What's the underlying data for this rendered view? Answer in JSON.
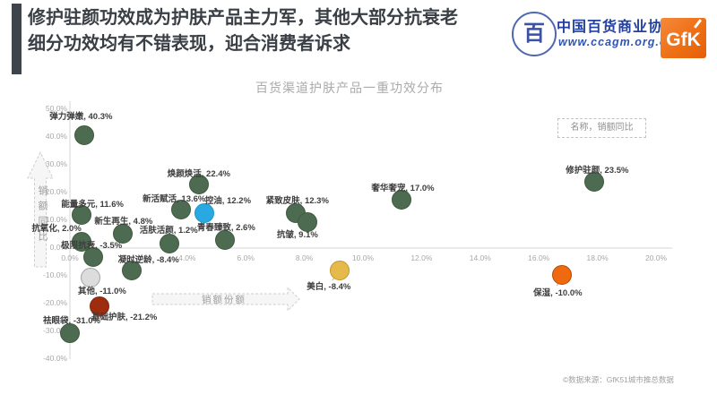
{
  "header": {
    "title_line1": "修护驻颜功效成为护肤产品主力军，其他大部分抗衰老",
    "title_line2": "细分功效均有不错表现，迎合消费者诉求",
    "org_name": "中国百货商业协会",
    "org_url": "www.ccagm.org.cn",
    "org_seal_glyph": "百",
    "gfk_logo_text": "GfK"
  },
  "chart_data": {
    "type": "scatter",
    "title": "百货渠道护肤产品一重功效分布",
    "xlabel": "销额份额",
    "ylabel": "销额同比",
    "legend": "名称，销额同比",
    "legend_position": "top-right",
    "grid": false,
    "xlim": [
      0,
      20
    ],
    "ylim": [
      -40,
      50
    ],
    "x_ticks": [
      {
        "v": 0,
        "label": "0.0%"
      },
      {
        "v": 4,
        "label": "4.0%"
      },
      {
        "v": 6,
        "label": "6.0%"
      },
      {
        "v": 8,
        "label": "8.0%"
      },
      {
        "v": 10,
        "label": "10.0%"
      },
      {
        "v": 12,
        "label": "12.0%"
      },
      {
        "v": 14,
        "label": "14.0%"
      },
      {
        "v": 16,
        "label": "16.0%"
      },
      {
        "v": 18,
        "label": "18.0%"
      },
      {
        "v": 20,
        "label": "20.0%"
      }
    ],
    "y_ticks": [
      {
        "v": 50,
        "label": "50.0%"
      },
      {
        "v": 40,
        "label": "40.0%"
      },
      {
        "v": 30,
        "label": "30.0%"
      },
      {
        "v": 20,
        "label": "20.0%"
      },
      {
        "v": 10,
        "label": "10.0%"
      },
      {
        "v": 0,
        "label": "0.0%"
      },
      {
        "v": -10,
        "label": "-10.0%"
      },
      {
        "v": -20,
        "label": "-20.0%"
      },
      {
        "v": -30,
        "label": "-30.0%"
      },
      {
        "v": -40,
        "label": "-40.0%"
      }
    ],
    "points": [
      {
        "name": "弹力弹嫩",
        "share_pct": 0.5,
        "growth_pct": 40.3,
        "growth_label": "40.3%",
        "color": "green"
      },
      {
        "name": "能量多元",
        "share_pct": 0.4,
        "growth_pct": 11.6,
        "growth_label": "11.6%",
        "color": "green"
      },
      {
        "name": "抗氧化",
        "share_pct": 0.4,
        "growth_pct": 2.0,
        "growth_label": "2.0%",
        "color": "green"
      },
      {
        "name": "极限抗衰",
        "share_pct": 0.8,
        "growth_pct": -3.5,
        "growth_label": "-3.5%",
        "color": "green"
      },
      {
        "name": "凝时逆龄",
        "share_pct": 2.1,
        "growth_pct": -8.4,
        "growth_label": "-8.4%",
        "color": "green"
      },
      {
        "name": "其他",
        "share_pct": 0.7,
        "growth_pct": -11.0,
        "growth_label": "-11.0%",
        "color": "gray"
      },
      {
        "name": "祛眼袋",
        "share_pct": 0.0,
        "growth_pct": -31.0,
        "growth_label": "-31.0%",
        "color": "green"
      },
      {
        "name": "基础护肤",
        "share_pct": 1.0,
        "growth_pct": -21.2,
        "growth_label": "-21.2%",
        "color": "darkred"
      },
      {
        "name": "新生再生",
        "share_pct": 1.8,
        "growth_pct": 4.8,
        "growth_label": "4.8%",
        "color": "green"
      },
      {
        "name": "活肤活颜",
        "share_pct": 3.4,
        "growth_pct": 1.2,
        "growth_label": "1.2%",
        "color": "green"
      },
      {
        "name": "新活赋活",
        "share_pct": 3.8,
        "growth_pct": 13.6,
        "growth_label": "13.6%",
        "color": "green"
      },
      {
        "name": "焕颜焕活",
        "share_pct": 4.4,
        "growth_pct": 22.4,
        "growth_label": "22.4%",
        "color": "green"
      },
      {
        "name": "控油",
        "share_pct": 4.6,
        "growth_pct": 12.2,
        "growth_label": "12.2%",
        "color": "blue"
      },
      {
        "name": "青春臻致",
        "share_pct": 5.3,
        "growth_pct": 2.6,
        "growth_label": "2.6%",
        "color": "green"
      },
      {
        "name": "紧致皮肤",
        "share_pct": 7.7,
        "growth_pct": 12.3,
        "growth_label": "12.3%",
        "color": "green"
      },
      {
        "name": "抗皱",
        "share_pct": 8.1,
        "growth_pct": 9.1,
        "growth_label": "9.1%",
        "color": "green"
      },
      {
        "name": "美白",
        "share_pct": 9.2,
        "growth_pct": -8.4,
        "growth_label": "-8.4%",
        "color": "yellow"
      },
      {
        "name": "奢华奢宠",
        "share_pct": 11.3,
        "growth_pct": 17.0,
        "growth_label": "17.0%",
        "color": "green"
      },
      {
        "name": "修护驻颜",
        "share_pct": 17.9,
        "growth_pct": 23.5,
        "growth_label": "23.5%",
        "color": "green"
      },
      {
        "name": "保湿",
        "share_pct": 16.8,
        "growth_pct": -10.0,
        "growth_label": "-10.0%",
        "color": "orange"
      }
    ]
  },
  "colors": {
    "green": {
      "fill": "#4c6b50",
      "border": "#40593f"
    },
    "blue": {
      "fill": "#29a9e2",
      "border": "#1c95cc"
    },
    "yellow": {
      "fill": "#e5b94a",
      "border": "#c39628"
    },
    "orange": {
      "fill": "#ef6a0e",
      "border": "#b54a08"
    },
    "darkred": {
      "fill": "#9e2d10",
      "border": "#85250c"
    },
    "gray": {
      "fill": "#dcdcdc",
      "border": "#a3a3a3"
    }
  },
  "footer": {
    "source": "©数据来源：GfK51城市推总数据"
  }
}
